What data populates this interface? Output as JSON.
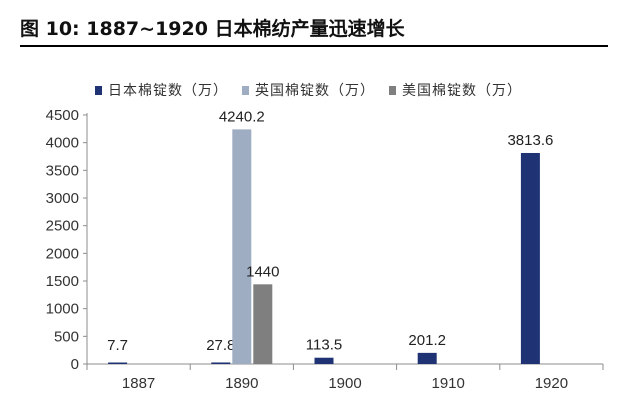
{
  "figure": {
    "title": "图 10:  1887~1920 日本棉纺产量迅速增长"
  },
  "chart_data": {
    "type": "bar",
    "categories": [
      "1887",
      "1890",
      "1900",
      "1910",
      "1920"
    ],
    "series": [
      {
        "name": "日本棉锭数（万）",
        "color": "#1f3374",
        "values": [
          7.7,
          27.8,
          113.5,
          201.2,
          3813.6
        ],
        "labels": [
          "7.7",
          "27.8",
          "113.5",
          "201.2",
          "3813.6"
        ]
      },
      {
        "name": "英国棉锭数（万）",
        "color": "#9fadc3",
        "values": [
          null,
          4240.2,
          null,
          null,
          null
        ],
        "labels": [
          "",
          "4240.2",
          "",
          "",
          ""
        ]
      },
      {
        "name": "美国棉锭数（万）",
        "color": "#7f7f7f",
        "values": [
          null,
          1440,
          null,
          null,
          null
        ],
        "labels": [
          "",
          "1440",
          "",
          "",
          ""
        ]
      }
    ],
    "ylim": [
      0,
      4500
    ],
    "yticks": [
      0,
      500,
      1000,
      1500,
      2000,
      2500,
      3000,
      3500,
      4000,
      4500
    ],
    "xlabel": "",
    "ylabel": "",
    "grid": false,
    "legend_position": "top"
  }
}
